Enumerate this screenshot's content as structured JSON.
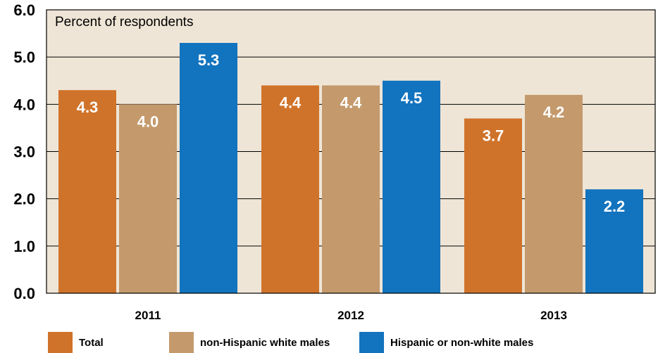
{
  "chart_data": {
    "type": "bar",
    "unit_label": "Percent of respondents",
    "categories": [
      "2011",
      "2012",
      "2013"
    ],
    "series": [
      {
        "name": "Total",
        "color": "#d0732a",
        "values": [
          4.3,
          4.4,
          3.7
        ]
      },
      {
        "name": "non-Hispanic white males",
        "color": "#c49a6c",
        "values": [
          4.0,
          4.4,
          4.2
        ]
      },
      {
        "name": "Hispanic or non-white males",
        "color": "#1273be",
        "values": [
          5.3,
          4.5,
          2.2
        ]
      }
    ],
    "ylim": [
      0,
      6
    ],
    "yticks": [
      "0.0",
      "1.0",
      "2.0",
      "3.0",
      "4.0",
      "5.0",
      "6.0"
    ],
    "grid": true,
    "legend_position": "bottom",
    "plot_background": "#efe5d6"
  }
}
